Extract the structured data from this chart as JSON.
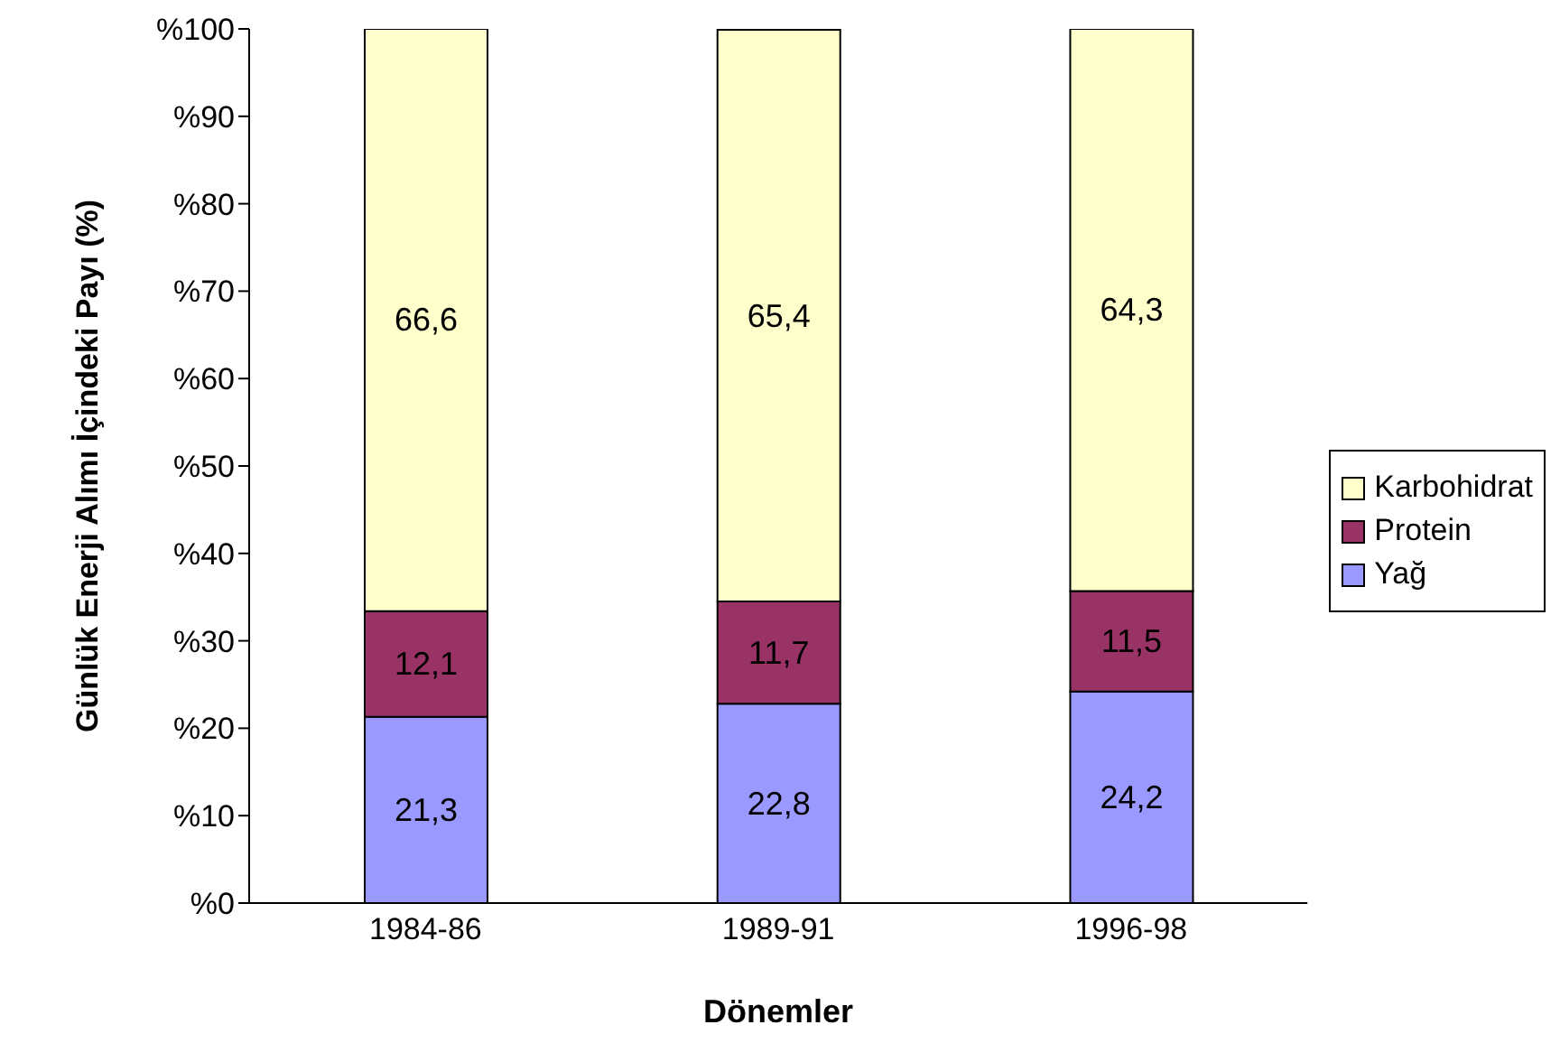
{
  "chart_data": {
    "type": "bar",
    "stacked": true,
    "xlabel": "Dönemler",
    "ylabel": "Günlük Enerji Alımı İçindeki Payı (%)",
    "categories": [
      "1984-86",
      "1989-91",
      "1996-98"
    ],
    "series": [
      {
        "name": "Yağ",
        "color": "#9999ff",
        "values": [
          21.3,
          22.8,
          24.2
        ],
        "value_labels": [
          "21,3",
          "22,8",
          "24,2"
        ]
      },
      {
        "name": "Protein",
        "color": "#993366",
        "values": [
          12.1,
          11.7,
          11.5
        ],
        "value_labels": [
          "12,1",
          "11,7",
          "11,5"
        ]
      },
      {
        "name": "Karbohidrat",
        "color": "#ffffcc",
        "values": [
          66.6,
          65.4,
          64.3
        ],
        "value_labels": [
          "66,6",
          "65,4",
          "64,3"
        ]
      }
    ],
    "ylim": [
      0,
      100
    ],
    "yticks": [
      {
        "value": 0,
        "label": "%0"
      },
      {
        "value": 10,
        "label": "%10"
      },
      {
        "value": 20,
        "label": "%20"
      },
      {
        "value": 30,
        "label": "%30"
      },
      {
        "value": 40,
        "label": "%40"
      },
      {
        "value": 50,
        "label": "%50"
      },
      {
        "value": 60,
        "label": "%60"
      },
      {
        "value": 70,
        "label": "%70"
      },
      {
        "value": 80,
        "label": "%80"
      },
      {
        "value": 90,
        "label": "%90"
      },
      {
        "value": 100,
        "label": "%100"
      }
    ],
    "grid": false,
    "legend": "right"
  }
}
